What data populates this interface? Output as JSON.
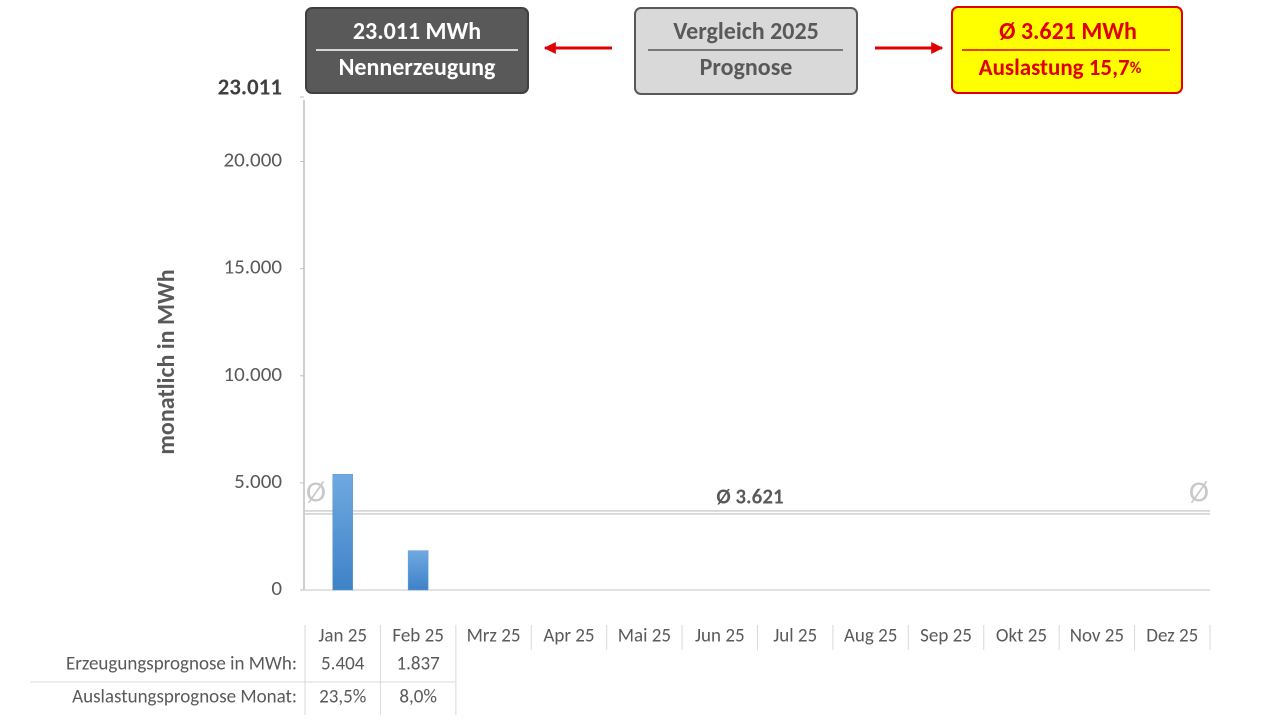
{
  "chart_data": {
    "type": "bar",
    "y_label": "monatlich in MWh",
    "categories": [
      "Jan 25",
      "Feb 25",
      "Mrz 25",
      "Apr 25",
      "Mai 25",
      "Jun 25",
      "Jul 25",
      "Aug 25",
      "Sep 25",
      "Okt 25",
      "Nov 25",
      "Dez 25"
    ],
    "series": [
      {
        "name": "Erzeugungsprognose in MWh:",
        "color": "#5b9bd5",
        "values": [
          5404,
          1837,
          null,
          null,
          null,
          null,
          null,
          null,
          null,
          null,
          null,
          null
        ],
        "value_labels": [
          "5.404",
          "1.837",
          null,
          null,
          null,
          null,
          null,
          null,
          null,
          null,
          null,
          null
        ]
      }
    ],
    "utilization_row": {
      "label": "Auslastungsprognose Monat:",
      "cells": [
        "23,5%",
        "8,0%"
      ]
    },
    "ylim": [
      0,
      23011
    ],
    "yticks": [
      0,
      {
        "value": 5000,
        "label": "5.000"
      },
      {
        "value": 10000,
        "label": "10.000"
      },
      {
        "value": 15000,
        "label": "15.000"
      },
      {
        "value": 20000,
        "label": "20.000"
      },
      {
        "value": 23011,
        "label": "23.011"
      }
    ],
    "average": 3621,
    "average_label": "Ø 3.621",
    "average_symbol": "Ø",
    "boxes": {
      "nominal": {
        "value_label": "23.011 MWh",
        "caption": "Nennerzeugung"
      },
      "comparison": {
        "title": "Vergleich 2025",
        "caption": "Prognose"
      },
      "forecast": {
        "value_label": "Ø 3.621 MWh",
        "caption": "Auslastung 15,7",
        "caption_unit": "%"
      }
    }
  }
}
